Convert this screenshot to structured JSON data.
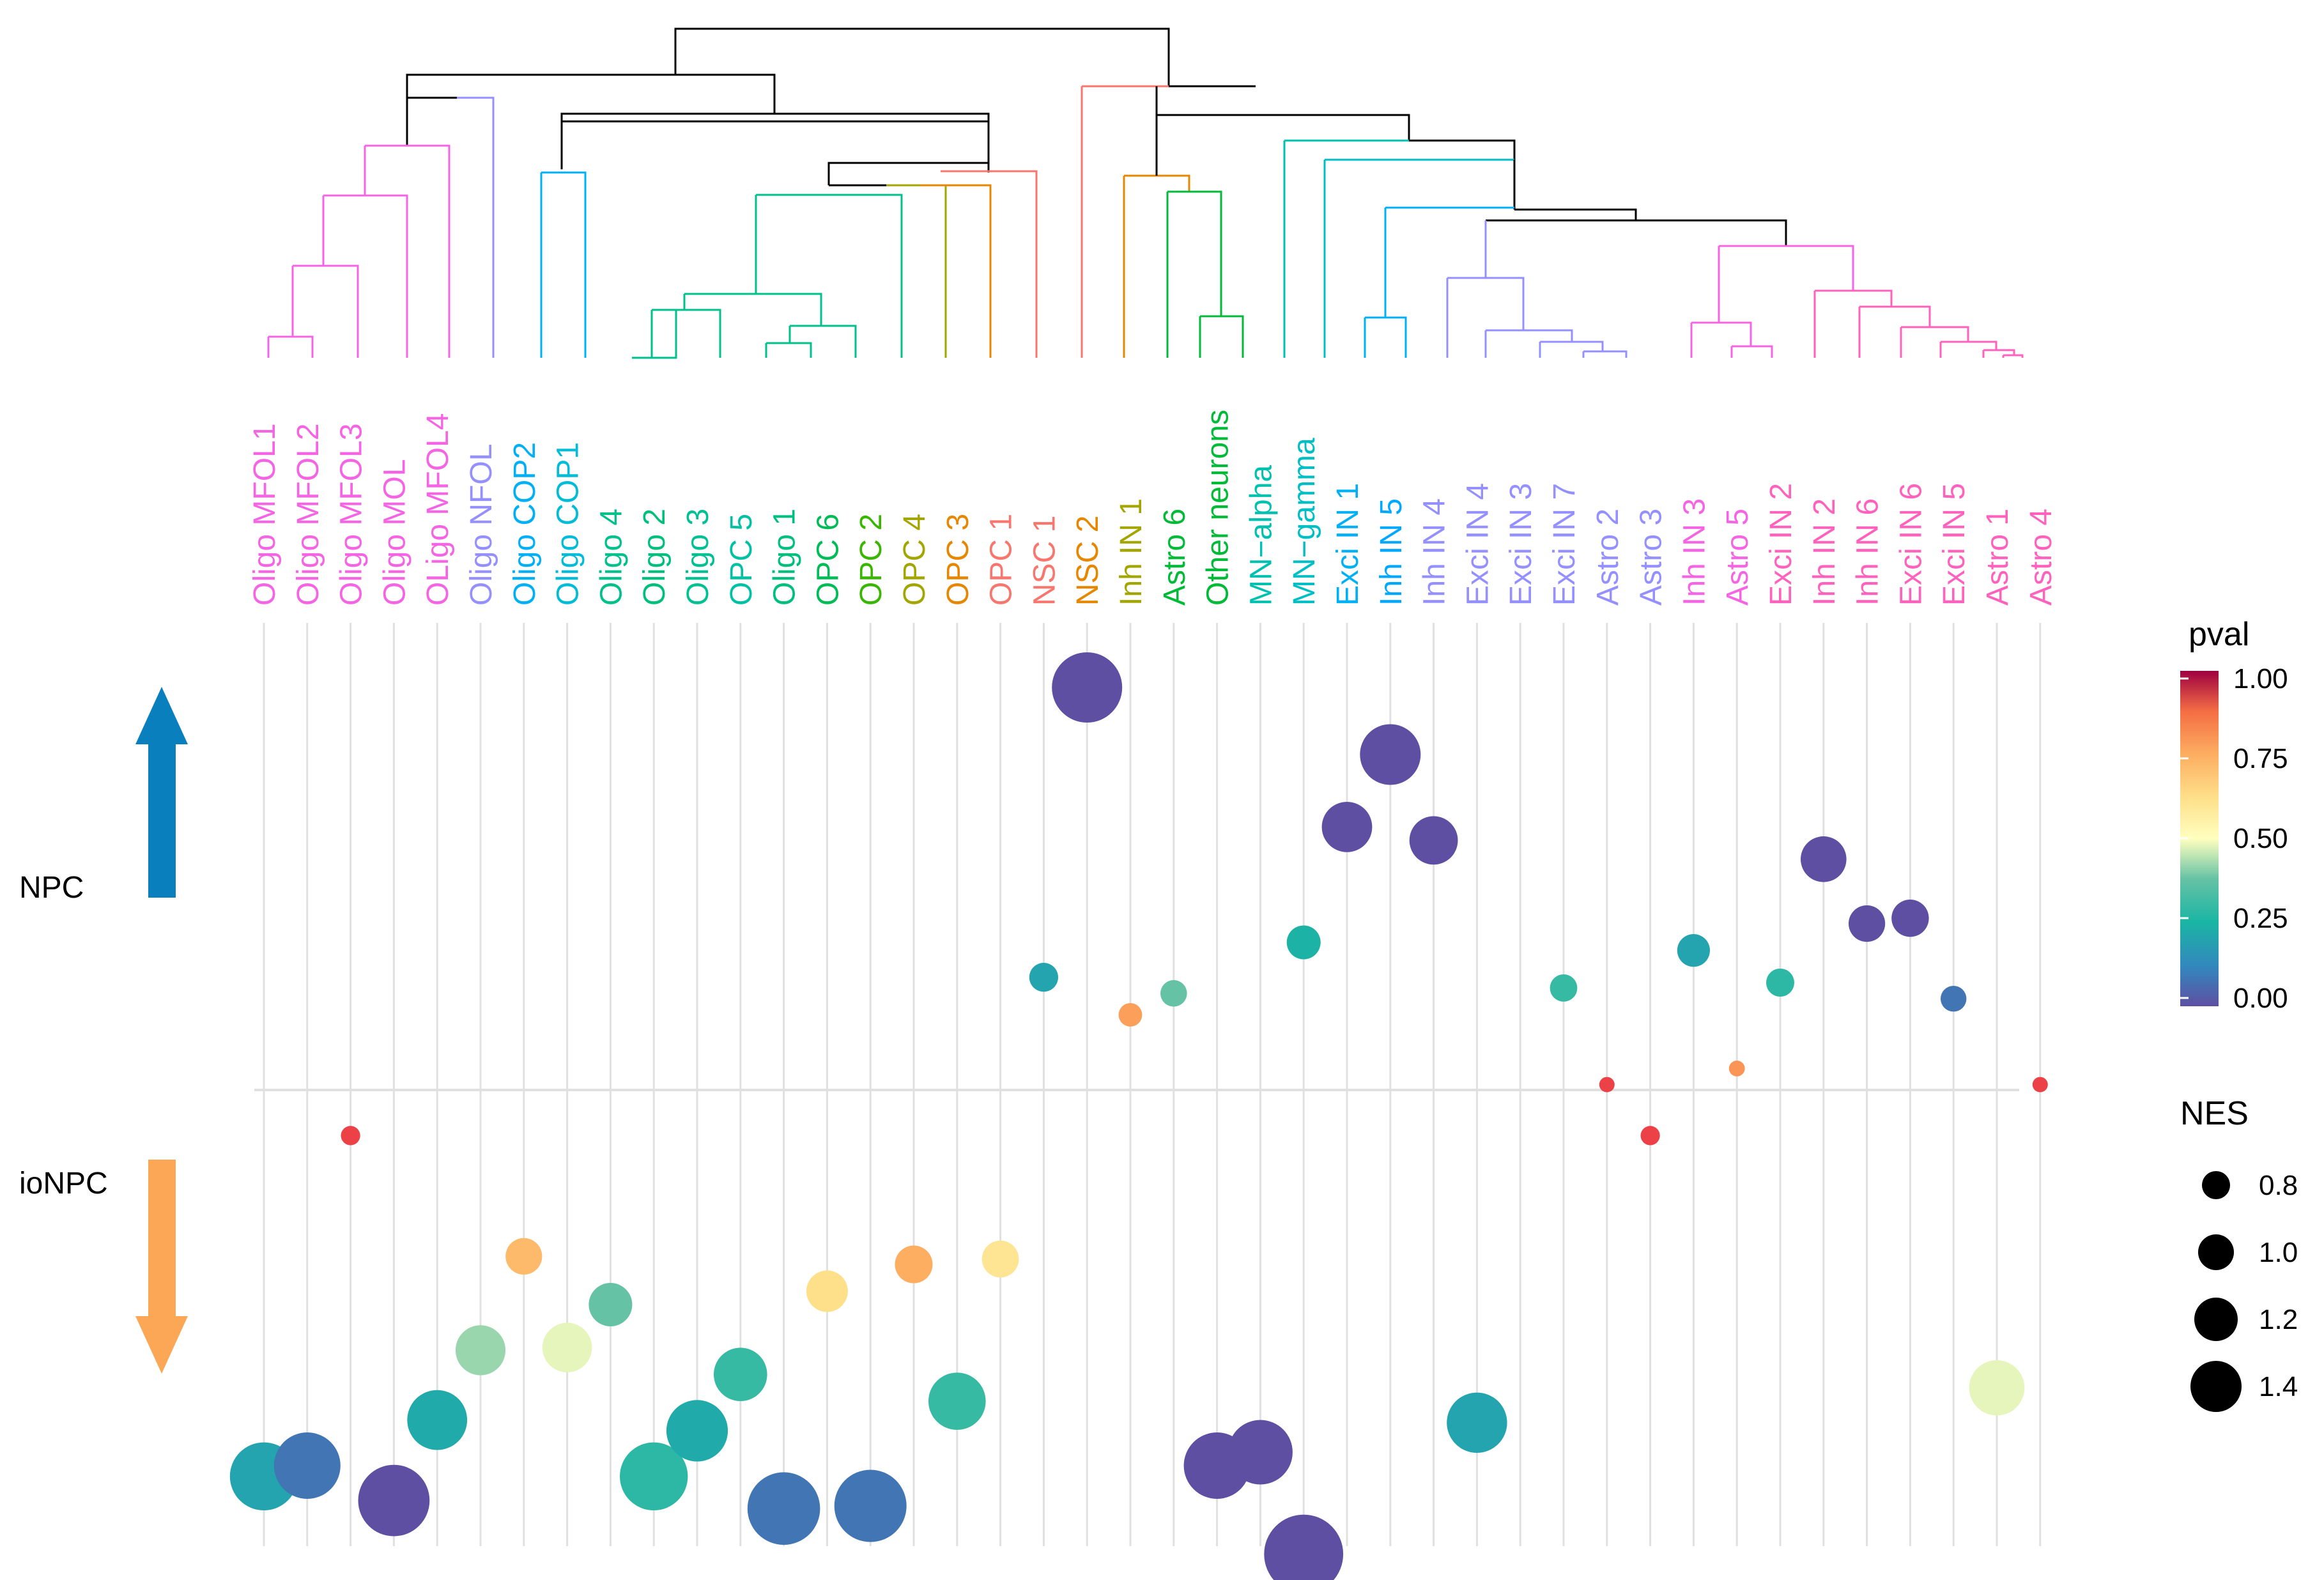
{
  "chart_data": {
    "type": "scatter",
    "title": "",
    "xlabel": "",
    "ylabel": "",
    "categories": [
      "Oligo MFOL1",
      "Oligo MFOL2",
      "Oligo MFOL3",
      "Oligo MOL",
      "OLigo MFOL4",
      "Oligo NFOL",
      "Oligo COP2",
      "Oligo COP1",
      "Oligo 4",
      "Oligo 2",
      "Oligo 3",
      "OPC 5",
      "Oligo 1",
      "OPC 6",
      "OPC 2",
      "OPC 4",
      "OPC 3",
      "OPC 1",
      "NSC 1",
      "NSC 2",
      "Inh IN 1",
      "Astro 6",
      "Other neurons",
      "MN−alpha",
      "MN−gamma",
      "Exci IN 1",
      "Inh IN 5",
      "Inh IN 4",
      "Exci IN 4",
      "Exci IN 3",
      "Exci IN 7",
      "Astro 2",
      "Astro 3",
      "Inh IN 3",
      "Astro 5",
      "Exci IN 2",
      "Inh IN 2",
      "Inh IN 6",
      "Exci IN 6",
      "Exci IN 5",
      "Astro 1",
      "Astro 4"
    ],
    "label_colors": [
      "#F564E3",
      "#F564E3",
      "#F564E3",
      "#F564E3",
      "#F564E3",
      "#9590FF",
      "#00B0F6",
      "#00BCD8",
      "#00C08B",
      "#00BF7D",
      "#00C094",
      "#00C1A3",
      "#00BF7D",
      "#00BC56",
      "#39B600",
      "#A3A500",
      "#E58700",
      "#F8766D",
      "#F8766D",
      "#E58700",
      "#A3A500",
      "#00BA38",
      "#00BA38",
      "#00C0AF",
      "#00BFC4",
      "#00B0F6",
      "#00A9FF",
      "#9590FF",
      "#9590FF",
      "#9590FF",
      "#9590FF",
      "#9590FF",
      "#9590FF",
      "#F564E3",
      "#F564E3",
      "#FF62BC",
      "#FF62BC",
      "#FF62BC",
      "#FF62BC",
      "#FF62BC",
      "#FF62BC",
      "#FF62BC"
    ],
    "groups": [
      "NPC",
      "ioNPC"
    ],
    "series": [
      {
        "name": "NPC",
        "points": [
          {
            "x": "NSC 1",
            "nes": 0.42,
            "pval": 0.2
          },
          {
            "x": "NSC 2",
            "nes": 1.5,
            "pval": 0.0
          },
          {
            "x": "Inh IN 1",
            "nes": 0.28,
            "pval": 0.78
          },
          {
            "x": "Astro 6",
            "nes": 0.36,
            "pval": 0.38
          },
          {
            "x": "MN−gamma",
            "nes": 0.55,
            "pval": 0.24
          },
          {
            "x": "Exci IN 1",
            "nes": 0.98,
            "pval": 0.0
          },
          {
            "x": "Inh IN 5",
            "nes": 1.25,
            "pval": 0.0
          },
          {
            "x": "Inh IN 4",
            "nes": 0.93,
            "pval": 0.0
          },
          {
            "x": "Exci IN 7",
            "nes": 0.38,
            "pval": 0.3
          },
          {
            "x": "Inh IN 3",
            "nes": 0.52,
            "pval": 0.2
          },
          {
            "x": "Exci IN 2",
            "nes": 0.4,
            "pval": 0.28
          },
          {
            "x": "Inh IN 2",
            "nes": 0.86,
            "pval": 0.0
          },
          {
            "x": "Inh IN 6",
            "nes": 0.62,
            "pval": 0.0
          },
          {
            "x": "Exci IN 6",
            "nes": 0.64,
            "pval": 0.0
          },
          {
            "x": "Exci IN 5",
            "nes": 0.34,
            "pval": 0.08
          },
          {
            "x": "Astro 2",
            "nes": 0.02,
            "pval": 0.95
          },
          {
            "x": "Astro 5",
            "nes": 0.08,
            "pval": 0.8
          },
          {
            "x": "Astro 4",
            "nes": 0.02,
            "pval": 0.95
          }
        ]
      },
      {
        "name": "ioNPC",
        "points": [
          {
            "x": "Oligo MFOL1",
            "nes": -1.44,
            "pval": 0.2
          },
          {
            "x": "Oligo MFOL2",
            "nes": -1.4,
            "pval": 0.08
          },
          {
            "x": "Oligo MFOL3",
            "nes": -0.17,
            "pval": 0.95
          },
          {
            "x": "Oligo MOL",
            "nes": -1.53,
            "pval": 0.0
          },
          {
            "x": "OLigo MFOL4",
            "nes": -1.23,
            "pval": 0.22
          },
          {
            "x": "Oligo NFOL",
            "nes": -0.97,
            "pval": 0.42
          },
          {
            "x": "Oligo COP2",
            "nes": -0.62,
            "pval": 0.72
          },
          {
            "x": "Oligo COP1",
            "nes": -0.96,
            "pval": 0.48
          },
          {
            "x": "Oligo 4",
            "nes": -0.8,
            "pval": 0.38
          },
          {
            "x": "Oligo 2",
            "nes": -1.44,
            "pval": 0.28
          },
          {
            "x": "Oligo 3",
            "nes": -1.27,
            "pval": 0.22
          },
          {
            "x": "OPC 5",
            "nes": -1.06,
            "pval": 0.3
          },
          {
            "x": "Oligo 1",
            "nes": -1.56,
            "pval": 0.08
          },
          {
            "x": "OPC 6",
            "nes": -0.75,
            "pval": 0.62
          },
          {
            "x": "OPC 2",
            "nes": -1.55,
            "pval": 0.08
          },
          {
            "x": "OPC 4",
            "nes": -0.65,
            "pval": 0.75
          },
          {
            "x": "OPC 3",
            "nes": -1.16,
            "pval": 0.3
          },
          {
            "x": "OPC 1",
            "nes": -0.63,
            "pval": 0.6
          },
          {
            "x": "MN−alpha",
            "nes": -1.35,
            "pval": 0.0
          },
          {
            "x": "Other neurons",
            "nes": -1.4,
            "pval": 0.0
          },
          {
            "x": "MN−gamma",
            "nes": -1.73,
            "pval": 0.0
          },
          {
            "x": "Exci IN 4",
            "nes": -1.24,
            "pval": 0.2
          },
          {
            "x": "Astro 3",
            "nes": -0.17,
            "pval": 0.95
          },
          {
            "x": "Astro 1",
            "nes": -1.11,
            "pval": 0.48
          }
        ]
      }
    ],
    "legend": {
      "color": {
        "title": "pval",
        "ticks": [
          "1.00",
          "0.75",
          "0.50",
          "0.25",
          "0.00"
        ]
      },
      "size": {
        "title": "NES",
        "ticks": [
          "0.8",
          "1.0",
          "1.2",
          "1.4"
        ]
      }
    },
    "dendrogram": "hierarchical clustering tree over the column categories"
  },
  "side_labels": {
    "up": "NPC",
    "down": "ioNPC"
  },
  "colors": {
    "up_arrow": "#0A7FBE",
    "down_arrow": "#FBA756",
    "grid": "#E0E0E0"
  }
}
